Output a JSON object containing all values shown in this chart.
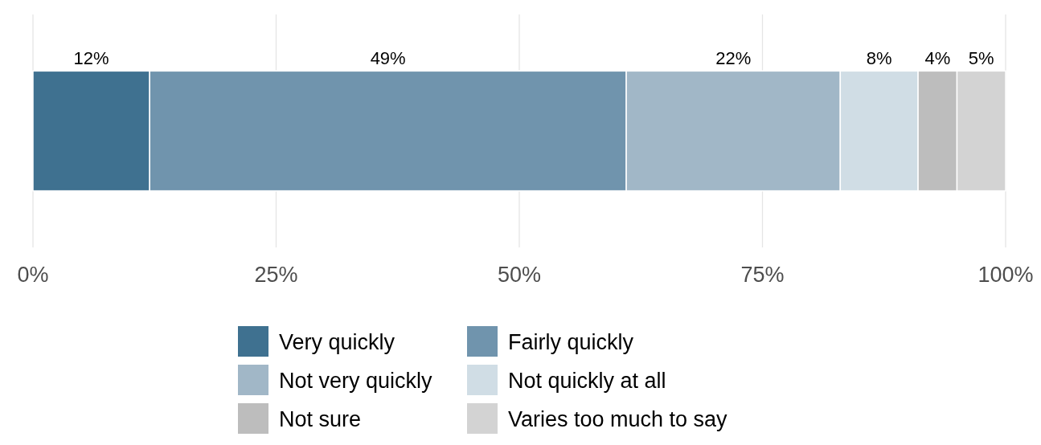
{
  "chart_data": {
    "type": "bar",
    "orientation": "horizontal",
    "stacked": true,
    "categories": [
      null
    ],
    "series": [
      {
        "name": "Very quickly",
        "color": "#3f7190",
        "values": [
          12
        ],
        "value_labels": [
          "12%"
        ]
      },
      {
        "name": "Fairly quickly",
        "color": "#7094ad",
        "values": [
          49
        ],
        "value_labels": [
          "49%"
        ]
      },
      {
        "name": "Not very quickly",
        "color": "#a1b7c7",
        "values": [
          22
        ],
        "value_labels": [
          "22%"
        ]
      },
      {
        "name": "Not quickly at all",
        "color": "#d0dde5",
        "values": [
          8
        ],
        "value_labels": [
          "8%"
        ]
      },
      {
        "name": "Not sure",
        "color": "#bdbdbd",
        "values": [
          4
        ],
        "value_labels": [
          "4%"
        ]
      },
      {
        "name": "Varies too much to say",
        "color": "#d3d3d3",
        "values": [
          5
        ],
        "value_labels": [
          "5%"
        ]
      }
    ],
    "xlim": [
      0,
      100
    ],
    "xticks": [
      {
        "value": 0,
        "label": "0%"
      },
      {
        "value": 25,
        "label": "25%"
      },
      {
        "value": 50,
        "label": "50%"
      },
      {
        "value": 75,
        "label": "75%"
      },
      {
        "value": 100,
        "label": "100%"
      }
    ],
    "grid": "x",
    "legend": "bottom"
  }
}
